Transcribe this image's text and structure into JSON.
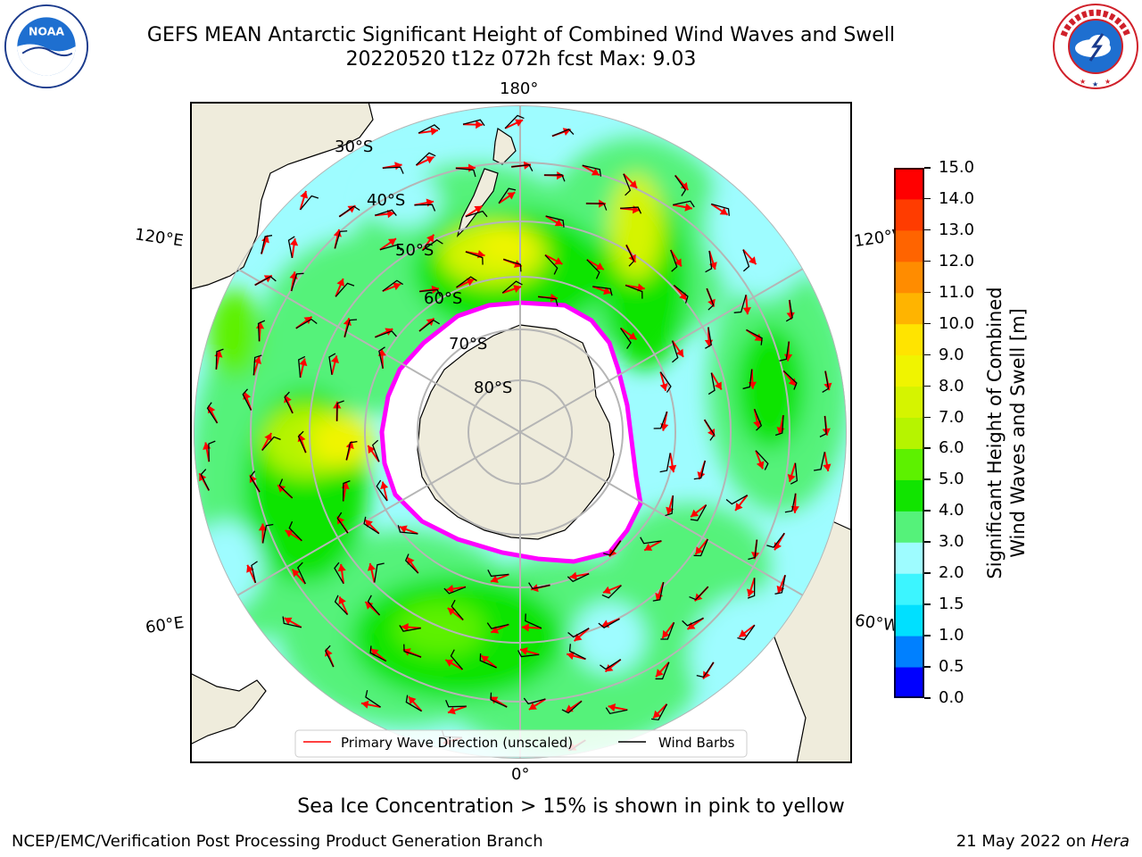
{
  "header": {
    "title_line1": "GEFS MEAN Antarctic Significant Height of Combined Wind Waves and Swell",
    "title_line2": "20220520 t12z 072h fcst   Max: 9.03"
  },
  "logos": {
    "noaa": {
      "text": "NOAA",
      "ring_text": "NATIONAL OCEANIC AND ATMOSPHERIC ADMINISTRATION",
      "bottom_text": "U.S. DEPARTMENT OF COMMERCE",
      "icon": "noaa-logo-icon"
    },
    "nws": {
      "ring_text": "NATIONAL WEATHER SERVICE",
      "icon": "nws-logo-icon"
    }
  },
  "map": {
    "longitude_labels": {
      "top": "180°",
      "bottom": "0°",
      "upper_left": "120°E",
      "upper_right": "120°W",
      "lower_left": "60°E",
      "lower_right": "60°W"
    },
    "latitude_labels": [
      "30°S",
      "40°S",
      "50°S",
      "60°S",
      "70°S",
      "80°S"
    ],
    "legend": {
      "primary_label": "Primary Wave Direction (unscaled)",
      "wind_label": "Wind Barbs"
    },
    "colors": {
      "land": "#efecdc",
      "ice": "#ffffff",
      "ice_edge": "#ff00ff",
      "arrow": "#ff0000",
      "barb": "#000000",
      "grid": "#b5b5b5"
    }
  },
  "colorbar": {
    "label_line1": "Significant Height of Combined",
    "label_line2": "Wind Waves and Swell [m]",
    "ticks": [
      "0.0",
      "0.5",
      "1.0",
      "1.5",
      "2.0",
      "3.0",
      "4.0",
      "5.0",
      "6.0",
      "7.0",
      "8.0",
      "9.0",
      "10.0",
      "11.0",
      "12.0",
      "13.0",
      "14.0",
      "15.0"
    ],
    "colors": [
      "#0000ff",
      "#0080ff",
      "#00e0ff",
      "#3cf5ff",
      "#9efcff",
      "#55f27a",
      "#11e400",
      "#5df100",
      "#b6f400",
      "#d5f400",
      "#f0f400",
      "#ffe400",
      "#ffb400",
      "#ff8c00",
      "#ff6400",
      "#ff3c00",
      "#ff0000"
    ]
  },
  "caption": "Sea Ice Concentration > 15% is shown in pink to yellow",
  "footer": {
    "left": "NCEP/EMC/Verification Post Processing Product Generation Branch",
    "right_prefix": "21 May 2022 on ",
    "right_machine": "Hera"
  }
}
